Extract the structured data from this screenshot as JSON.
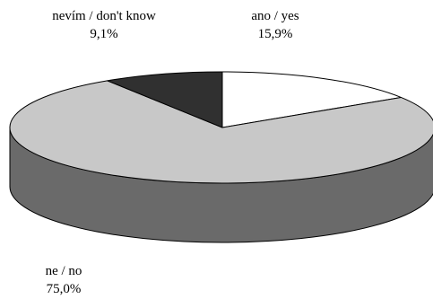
{
  "chart_data": {
    "type": "pie",
    "style": "3d",
    "slices": [
      {
        "label": "ano / yes",
        "value": 15.9,
        "display": "15,9%",
        "color": "#ffffff"
      },
      {
        "label": "ne / no",
        "value": 75.0,
        "display": "75,0%",
        "color": "#c8c8c8"
      },
      {
        "label": "nevím / don't know",
        "value": 9.1,
        "display": "9,1%",
        "color": "#303030"
      }
    ],
    "side_color": "#6a6a6a",
    "outline_color": "#000000",
    "start_angle_deg": 90,
    "direction": "clockwise"
  }
}
